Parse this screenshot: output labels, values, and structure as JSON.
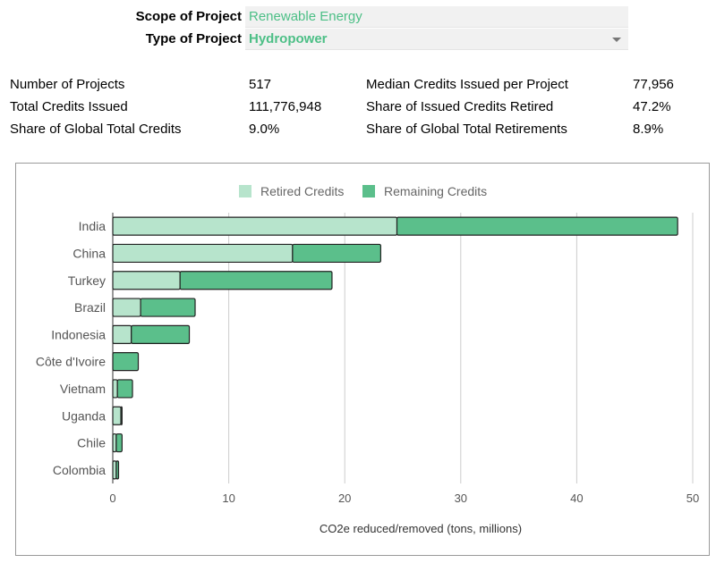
{
  "filters": {
    "scope": {
      "label": "Scope of Project",
      "value": "Renewable Energy"
    },
    "type": {
      "label": "Type of Project",
      "value": "Hydropower"
    }
  },
  "stats": {
    "num_projects": {
      "label": "Number of Projects",
      "value": "517"
    },
    "total_credits": {
      "label": "Total Credits Issued",
      "value": "111,776,948"
    },
    "share_global_credits": {
      "label": "Share of Global Total Credits",
      "value": "9.0%"
    },
    "median_credits": {
      "label": "Median Credits Issued per Project",
      "value": "77,956"
    },
    "share_retired": {
      "label": "Share of Issued Credits Retired",
      "value": "47.2%"
    },
    "share_global_retirements": {
      "label": "Share of Global Total Retirements",
      "value": "8.9%"
    }
  },
  "chart_data": {
    "type": "bar",
    "orientation": "horizontal",
    "stacked": true,
    "categories": [
      "India",
      "China",
      "Turkey",
      "Brazil",
      "Indonesia",
      "Côte d'Ivoire",
      "Vietnam",
      "Uganda",
      "Chile",
      "Colombia"
    ],
    "series": [
      {
        "name": "Retired Credits",
        "color": "#b7e4cc",
        "values": [
          24.5,
          15.5,
          5.8,
          2.4,
          1.6,
          0.0,
          0.4,
          0.7,
          0.3,
          0.3
        ]
      },
      {
        "name": "Remaining Credits",
        "color": "#5bbf8b",
        "values": [
          24.2,
          7.6,
          13.1,
          4.7,
          5.0,
          2.2,
          1.3,
          0.1,
          0.5,
          0.2
        ]
      }
    ],
    "xlabel": "CO2e reduced/removed (tons, millions)",
    "ylabel": "",
    "xlim": [
      0,
      50
    ],
    "xticks": [
      "0",
      "10",
      "20",
      "30",
      "40",
      "50"
    ],
    "grid": true,
    "legend_position": "top"
  }
}
